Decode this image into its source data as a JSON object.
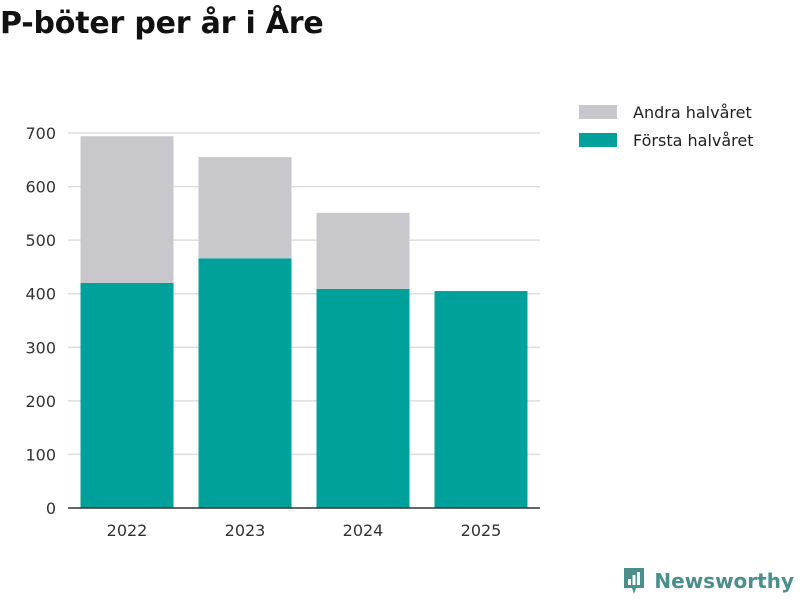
{
  "title": "P-böter per år i Åre",
  "chart_data": {
    "type": "bar",
    "stacked": true,
    "categories": [
      "2022",
      "2023",
      "2024",
      "2025"
    ],
    "series": [
      {
        "name": "Första halvåret",
        "values": [
          420,
          466,
          409,
          405
        ],
        "color": "#00a19a"
      },
      {
        "name": "Andra halvåret",
        "values": [
          274,
          189,
          142,
          0
        ],
        "color": "#c8c8cc"
      }
    ],
    "ylim": [
      0,
      700
    ],
    "yticks": [
      0,
      100,
      200,
      300,
      400,
      500,
      600,
      700
    ],
    "grid": true,
    "legend_position": "top-right",
    "legend_order": [
      "Andra halvåret",
      "Första halvåret"
    ],
    "xlabel": "",
    "ylabel": ""
  },
  "legend": {
    "items": [
      {
        "label": "Andra halvåret",
        "color": "#c8c8cc"
      },
      {
        "label": "Första halvåret",
        "color": "#00a19a"
      }
    ]
  },
  "brand": {
    "name": "Newsworthy",
    "icon": "newsworthy-logo-icon",
    "color": "#4a8f8b"
  }
}
